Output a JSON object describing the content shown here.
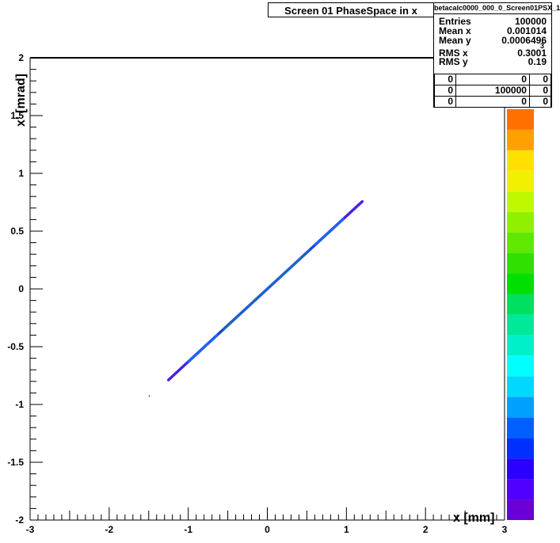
{
  "chart_data": {
    "type": "heatmap",
    "title": "Screen 01 PhaseSpace in x",
    "xlabel": "x [mm]",
    "ylabel": "x' [mrad]",
    "xlim": [
      -3,
      3
    ],
    "ylim": [
      -2,
      2
    ],
    "x_ticks": [
      "-3",
      "-2",
      "-1",
      "0",
      "1",
      "2",
      "3"
    ],
    "y_ticks": [
      "-2",
      "-1.5",
      "-1",
      "-0.5",
      "0",
      "0.5",
      "1",
      "1.5",
      "2"
    ],
    "distribution": {
      "description": "narrow correlated line",
      "x_range": [
        -1.25,
        1.2
      ],
      "slope_mrad_per_mm": 0.63,
      "outliers": [
        [
          -1.5,
          -0.92
        ],
        [
          1.2,
          0.76
        ]
      ]
    },
    "colorbar": {
      "colors": [
        "#6a00d8",
        "#5000ff",
        "#2a00ff",
        "#0030ff",
        "#0060ff",
        "#00a0ff",
        "#00d8ff",
        "#00ffff",
        "#00f0c8",
        "#00e89a",
        "#00e060",
        "#00e000",
        "#30e000",
        "#60e800",
        "#90f000",
        "#c0f800",
        "#f0f000",
        "#ffe000",
        "#ffa000",
        "#ff7000"
      ]
    }
  },
  "stats_box": {
    "name": "betacalc0000_000_0_Screen01PSX_1",
    "entries_label": "Entries",
    "entries": "100000",
    "mean_x_label": "Mean x",
    "mean_x": "0.001014",
    "mean_y_label": "Mean y",
    "mean_y": "0.0006496",
    "rms_x_label": "RMS x",
    "rms_x": "0.3001",
    "rms_y_label": "RMS y",
    "rms_y": "0.19",
    "grid": [
      [
        "0",
        "0",
        "0"
      ],
      [
        "0",
        "100000",
        "0"
      ],
      [
        "0",
        "0",
        "0"
      ]
    ]
  },
  "colorbar_exponent": "3"
}
